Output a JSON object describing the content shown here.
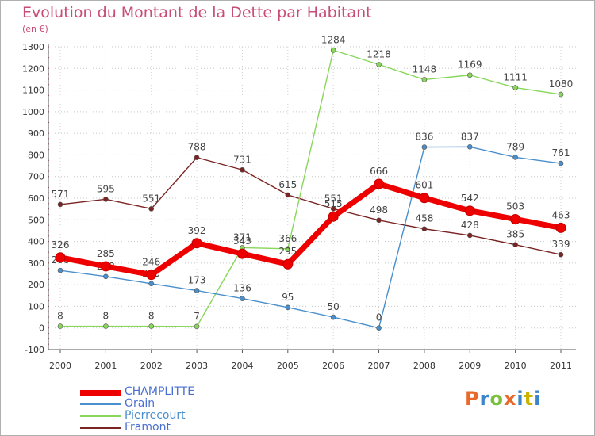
{
  "title": "Evolution du Montant de la Dette par Habitant",
  "unit_label": "(en €)",
  "logo": {
    "letters": [
      "P",
      "r",
      "o",
      "x",
      "i",
      "t",
      "i"
    ],
    "colors": [
      "#e8692b",
      "#3a86c8",
      "#7abf3e",
      "#e8692b",
      "#3a86c8",
      "#c8b400",
      "#3a86c8"
    ]
  },
  "chart_data": {
    "type": "line",
    "title": "Evolution du Montant de la Dette par Habitant",
    "ylabel": "(en €)",
    "xlabel": "",
    "x": [
      "2000",
      "2001",
      "2002",
      "2003",
      "2004",
      "2005",
      "2006",
      "2007",
      "2008",
      "2009",
      "2010",
      "2011"
    ],
    "ylim": [
      -100,
      1300
    ],
    "yticks": [
      -100,
      0,
      100,
      200,
      300,
      400,
      500,
      600,
      700,
      800,
      900,
      1000,
      1100,
      1200,
      1300
    ],
    "grid": true,
    "legend": "bottom-left",
    "series": [
      {
        "name": "Framont",
        "color": "#7a2424",
        "values": [
          571,
          595,
          551,
          788,
          731,
          615,
          551,
          498,
          458,
          428,
          385,
          339
        ]
      },
      {
        "name": "Pierrecourt",
        "color": "#88d65a",
        "values": [
          8,
          8,
          8,
          7,
          371,
          366,
          1284,
          1218,
          1148,
          1169,
          1111,
          1080
        ]
      },
      {
        "name": "Orain",
        "color": "#4a8fcb",
        "values": [
          266,
          238,
          205,
          173,
          136,
          95,
          50,
          0,
          836,
          837,
          789,
          761
        ]
      },
      {
        "name": "CHAMPLITTE",
        "color": "#ee0000",
        "values": [
          326,
          285,
          246,
          392,
          343,
          295,
          515,
          666,
          601,
          542,
          503,
          463
        ]
      }
    ],
    "legend_order": [
      "CHAMPLITTE",
      "Orain",
      "Pierrecourt",
      "Framont"
    ]
  }
}
